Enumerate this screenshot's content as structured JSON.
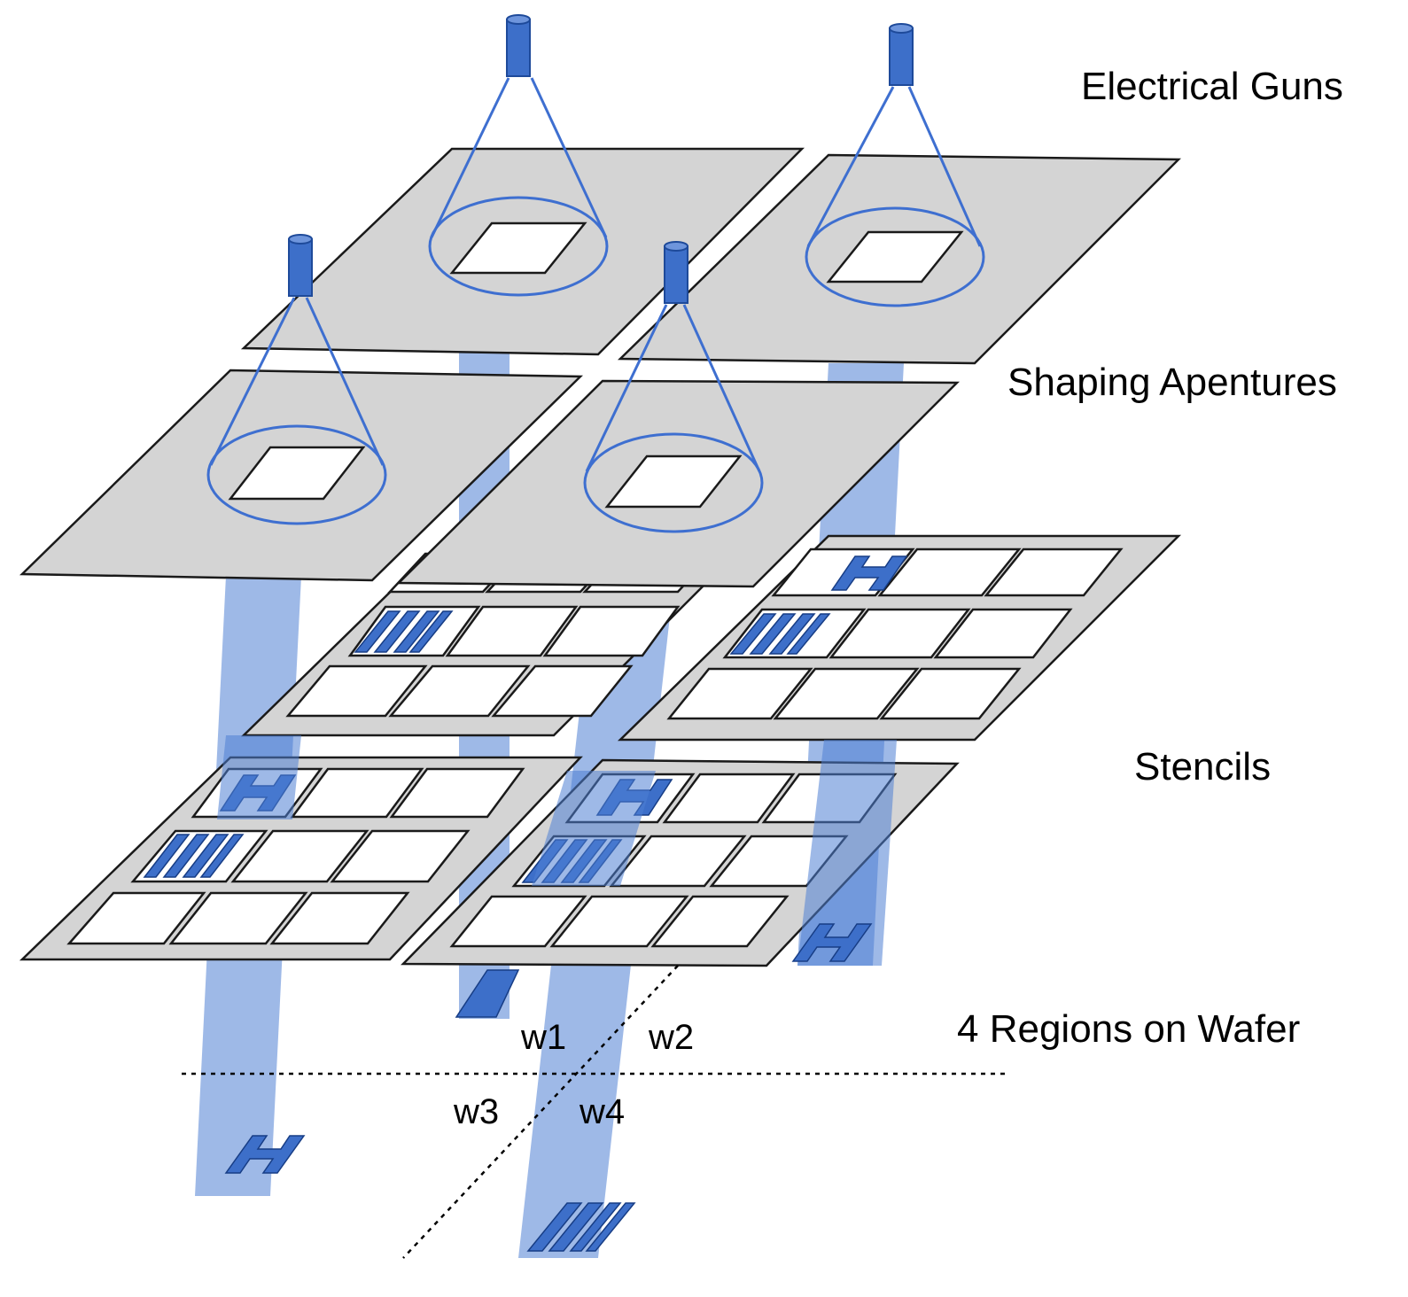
{
  "labels": {
    "electrical_guns": "Electrical Guns",
    "shaping_apertures": "Shaping Apentures",
    "stencils": "Stencils",
    "regions_on_wafer": "4 Regions on Wafer"
  },
  "regions": {
    "w1": "w1",
    "w2": "w2",
    "w3": "w3",
    "w4": "w4"
  },
  "colors": {
    "beam": "#4f7fd4",
    "gun": "#3d6fc9",
    "plate": "#d4d4d4",
    "outline": "#1a1a1a"
  }
}
